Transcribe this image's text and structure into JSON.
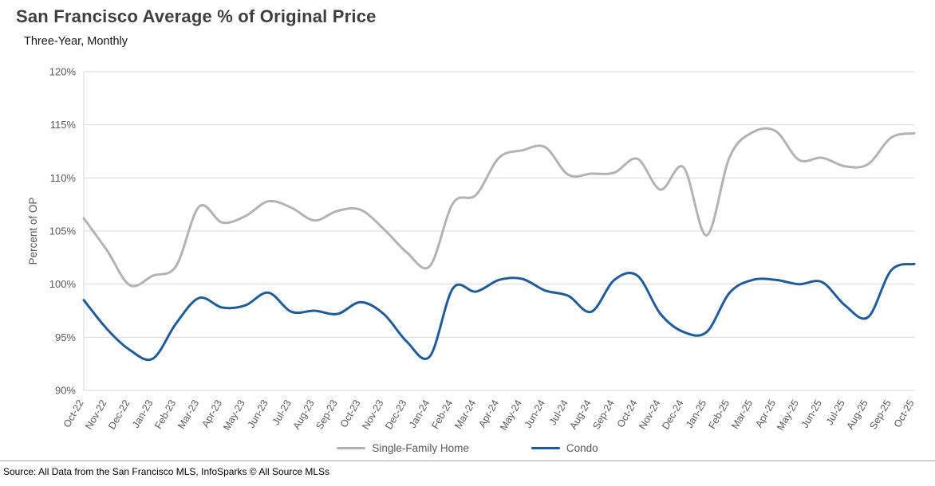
{
  "title": "San Francisco Average % of Original Price",
  "subtitle": "Three-Year, Monthly",
  "source": "Source: All Data from the San Francisco MLS, InfoSparks © All Source MLSs",
  "chart_data": {
    "type": "line",
    "title": "San Francisco Average % of Original Price",
    "subtitle": "Three-Year, Monthly",
    "xlabel": "",
    "ylabel": "Percent of OP",
    "ylim": [
      90,
      120
    ],
    "ytick_step": 5,
    "ytick_suffix": "%",
    "grid": true,
    "legend_position": "bottom",
    "gridline_color": "#d9d9d9",
    "axis_text_color": "#595959",
    "categories": [
      "Oct-22",
      "Nov-22",
      "Dec-22",
      "Jan-23",
      "Feb-23",
      "Mar-23",
      "Apr-23",
      "May-23",
      "Jun-23",
      "Jul-23",
      "Aug-23",
      "Sep-23",
      "Oct-23",
      "Nov-23",
      "Dec-23",
      "Jan-24",
      "Feb-24",
      "Mar-24",
      "Apr-24",
      "May-24",
      "Jun-24",
      "Jul-24",
      "Aug-24",
      "Sep-24",
      "Oct-24",
      "Nov-24",
      "Dec-24",
      "Jan-25",
      "Feb-25",
      "Mar-25",
      "Apr-25",
      "May-25",
      "Jun-25",
      "Jul-25",
      "Aug-25",
      "Sep-25",
      "Oct-25"
    ],
    "series": [
      {
        "name": "Single-Family Home",
        "color": "#b3b3b3",
        "values": [
          106.2,
          103.2,
          99.9,
          100.8,
          101.7,
          107.3,
          105.8,
          106.4,
          107.8,
          107.2,
          106.0,
          106.9,
          107.0,
          105.2,
          103.0,
          101.7,
          107.6,
          108.4,
          111.9,
          112.6,
          112.9,
          110.3,
          110.4,
          110.5,
          111.8,
          108.9,
          111.0,
          104.6,
          112.0,
          114.3,
          114.4,
          111.7,
          111.9,
          111.1,
          111.3,
          113.8,
          114.2
        ]
      },
      {
        "name": "Condo",
        "color": "#1f5c99",
        "values": [
          98.5,
          95.8,
          93.8,
          93.0,
          96.3,
          98.7,
          97.8,
          98.0,
          99.2,
          97.4,
          97.5,
          97.2,
          98.3,
          97.2,
          94.6,
          93.2,
          99.6,
          99.3,
          100.4,
          100.5,
          99.4,
          98.9,
          97.4,
          100.4,
          100.8,
          97.2,
          95.5,
          95.5,
          99.2,
          100.4,
          100.4,
          100.0,
          100.2,
          98.0,
          96.9,
          101.3,
          101.9
        ]
      }
    ]
  }
}
